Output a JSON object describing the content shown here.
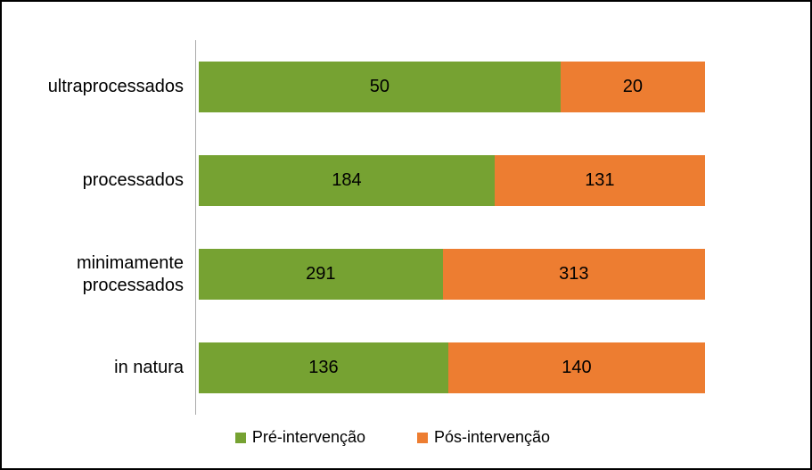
{
  "frame": {
    "border_color": "#000000",
    "background_color": "#FFFFFF",
    "axis_color": "#ABABAB"
  },
  "chart_data": {
    "type": "bar",
    "orientation": "horizontal",
    "stacking": "100%",
    "title": "",
    "xlabel": "",
    "ylabel": "",
    "grid": false,
    "legend_position": "bottom",
    "categories": [
      "ultraprocessados",
      "processados",
      "minimamente processados",
      "in natura"
    ],
    "series": [
      {
        "name": "Pré-intervenção",
        "color": "#76A232",
        "values": [
          50,
          184,
          291,
          136
        ]
      },
      {
        "name": "Pós-intervenção",
        "color": "#ED7D31",
        "values": [
          20,
          131,
          313,
          140
        ]
      }
    ]
  }
}
